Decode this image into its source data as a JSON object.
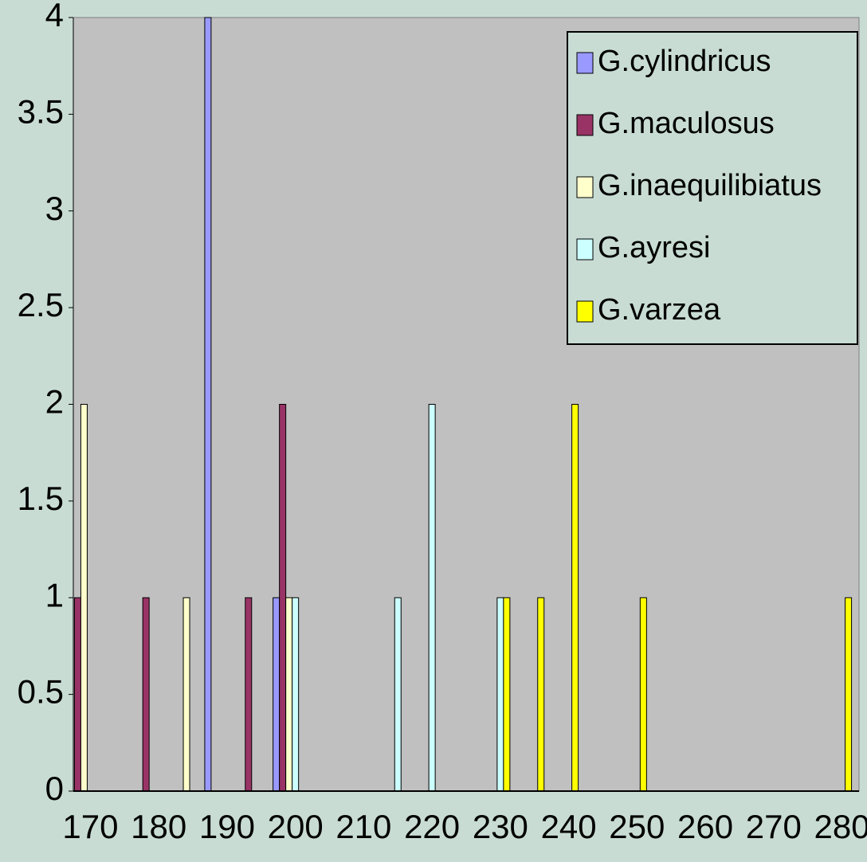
{
  "chart_data": {
    "type": "bar",
    "categories": [
      170,
      null,
      180,
      null,
      190,
      null,
      200,
      null,
      210,
      null,
      220,
      null,
      230,
      null,
      240,
      null,
      250,
      null,
      260,
      null,
      270,
      null,
      280
    ],
    "series": [
      {
        "name": "G.cylindricus",
        "color": "#9999ff",
        "values": [
          0,
          0,
          0,
          0,
          4,
          0,
          1,
          0,
          0,
          0,
          0,
          0,
          0,
          0,
          0,
          0,
          0,
          0,
          0,
          0,
          0,
          0,
          0
        ]
      },
      {
        "name": "G.maculosus",
        "color": "#993366",
        "values": [
          1,
          0,
          1,
          0,
          0,
          1,
          2,
          0,
          0,
          0,
          0,
          0,
          0,
          0,
          0,
          0,
          0,
          0,
          0,
          0,
          0,
          0,
          0
        ]
      },
      {
        "name": "G.inaequilibiatus",
        "color": "#ffffcc",
        "values": [
          2,
          0,
          0,
          1,
          0,
          0,
          1,
          0,
          0,
          0,
          0,
          0,
          0,
          0,
          0,
          0,
          0,
          0,
          0,
          0,
          0,
          0,
          0
        ]
      },
      {
        "name": "G.ayresi",
        "color": "#ccffff",
        "values": [
          0,
          0,
          0,
          0,
          0,
          0,
          1,
          0,
          0,
          1,
          2,
          0,
          1,
          0,
          0,
          0,
          0,
          0,
          0,
          0,
          0,
          0,
          0
        ]
      },
      {
        "name": "G.varzea",
        "color": "#ffff00",
        "values": [
          0,
          0,
          0,
          0,
          0,
          0,
          0,
          0,
          0,
          0,
          0,
          0,
          1,
          1,
          2,
          0,
          1,
          0,
          0,
          0,
          0,
          0,
          1
        ]
      }
    ],
    "ylim": [
      0,
      4
    ],
    "yticks": [
      0,
      0.5,
      1,
      1.5,
      2,
      2.5,
      3,
      3.5,
      4
    ],
    "plot_background": "#c0c0c0",
    "legend": "top-right"
  }
}
